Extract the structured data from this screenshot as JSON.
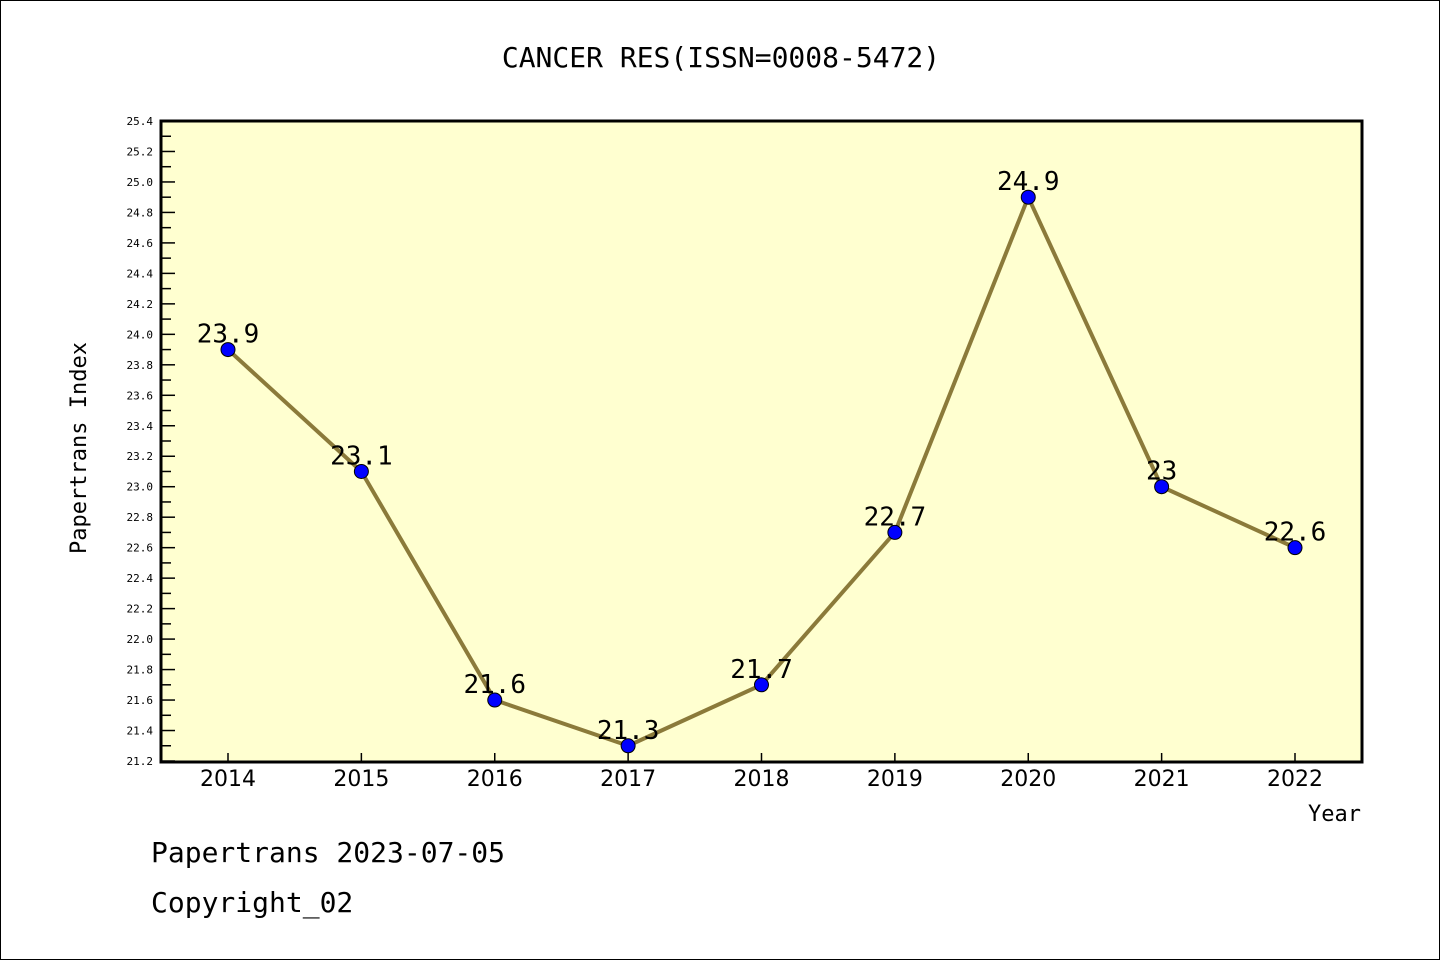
{
  "chart_data": {
    "type": "line",
    "title": "CANCER RES(ISSN=0008-5472)",
    "xlabel": "Year",
    "ylabel": "Papertrans Index",
    "categories": [
      "2014",
      "2015",
      "2016",
      "2017",
      "2018",
      "2019",
      "2020",
      "2021",
      "2022"
    ],
    "values": [
      23.9,
      23.1,
      21.6,
      21.3,
      21.7,
      22.7,
      24.9,
      23,
      22.6
    ],
    "data_labels": [
      "23.9",
      "23.1",
      "21.6",
      "21.3",
      "21.7",
      "22.7",
      "24.9",
      "23",
      "22.6"
    ],
    "ylim": [
      21.2,
      25.4
    ],
    "ytick_step": 0.2,
    "grid": false,
    "colors": {
      "plot_bg": "#ffffd0",
      "line": "#8b7a3a",
      "marker": "#0000ff"
    }
  },
  "footer": {
    "line1": "Papertrans 2023-07-05",
    "line2": "Copyright_02"
  }
}
